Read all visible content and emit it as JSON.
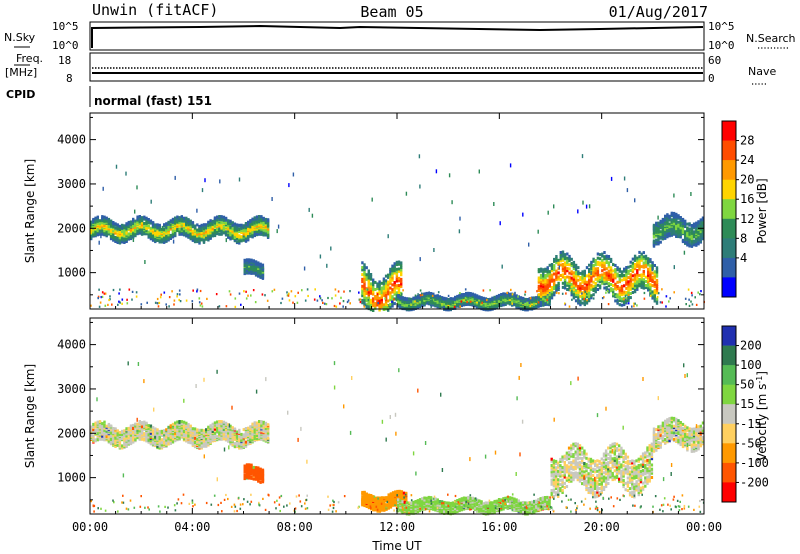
{
  "header": {
    "station": "Unwin (fitACF)",
    "beam": "Beam 05",
    "date": "01/Aug/2017"
  },
  "strips": {
    "nsky_label": "N.Sky",
    "nsky_ticks": [
      "10^5",
      "10^0"
    ],
    "nsearch_label": "N.Search",
    "nsearch_ticks": [
      "10^5",
      "10^0"
    ],
    "freq_label_1": "Freq.",
    "freq_label_2": "[MHz]",
    "freq_ticks": [
      "18",
      "8"
    ],
    "nave_label": "Nave",
    "nave_ticks": [
      "60",
      "0"
    ],
    "cpid_label": "CPID",
    "cpid_text": "normal (fast) 151"
  },
  "axes": {
    "ylabel": "Slant Range [km]",
    "yticks": [
      "4000",
      "3000",
      "2000",
      "1000"
    ],
    "xlabel": "Time UT",
    "xticks": [
      "00:00",
      "04:00",
      "08:00",
      "12:00",
      "16:00",
      "20:00",
      "00:00"
    ]
  },
  "chart_data": [
    {
      "type": "heatmap",
      "title": "",
      "xlabel": "Time UT",
      "ylabel": "Slant Range [km]",
      "xlim": [
        0,
        24
      ],
      "ylim": [
        180,
        4600
      ],
      "colorbar": {
        "label": "Power [dB]",
        "ticks": [
          "28",
          "24",
          "20",
          "16",
          "12",
          "8",
          "4"
        ],
        "colors": [
          "#ff0000",
          "#ff4d00",
          "#ff9900",
          "#ffd400",
          "#7fd640",
          "#2e8b57",
          "#2e7d78",
          "#2f5fa8",
          "#0000ff"
        ]
      },
      "regions": [
        {
          "t0": 0.0,
          "t1": 7.0,
          "r_center": 2000,
          "r_width": 400,
          "peak_db": 20
        },
        {
          "t0": 6.0,
          "t1": 6.8,
          "r_center": 1100,
          "r_width": 300,
          "peak_db": 12
        },
        {
          "t0": 10.6,
          "t1": 12.2,
          "r_center": 600,
          "r_width": 900,
          "peak_db": 28
        },
        {
          "t0": 12.0,
          "t1": 18.0,
          "r_center": 380,
          "r_width": 250,
          "peak_db": 16
        },
        {
          "t0": 17.5,
          "t1": 22.2,
          "r_center": 900,
          "r_width": 800,
          "peak_db": 28
        },
        {
          "t0": 22.0,
          "t1": 24.0,
          "r_center": 2000,
          "r_width": 500,
          "peak_db": 14
        }
      ]
    },
    {
      "type": "heatmap",
      "title": "",
      "xlabel": "Time UT",
      "ylabel": "Slant Range [km]",
      "xlim": [
        0,
        24
      ],
      "ylim": [
        180,
        4600
      ],
      "colorbar": {
        "label": "Velocity [m s^-1]",
        "ticks": [
          "200",
          "100",
          "50",
          "15",
          "-15",
          "-50",
          "-100",
          "-200"
        ],
        "colors": [
          "#2030b0",
          "#2f7a4f",
          "#55bb55",
          "#7fd640",
          "#c8c8c0",
          "#ffd060",
          "#ff9900",
          "#ff5500",
          "#ff0000"
        ]
      },
      "regions": [
        {
          "t0": 0.0,
          "t1": 7.0,
          "r_center": 2000,
          "r_width": 400,
          "velocity": 0
        },
        {
          "t0": 6.0,
          "t1": 6.8,
          "r_center": 1100,
          "r_width": 300,
          "velocity": -100
        },
        {
          "t0": 10.6,
          "t1": 12.4,
          "r_center": 500,
          "r_width": 300,
          "velocity": -50
        },
        {
          "t0": 12.0,
          "t1": 18.0,
          "r_center": 400,
          "r_width": 250,
          "velocity": 15
        },
        {
          "t0": 18.0,
          "t1": 22.0,
          "r_center": 1200,
          "r_width": 800,
          "velocity": 0
        },
        {
          "t0": 22.0,
          "t1": 24.0,
          "r_center": 2000,
          "r_width": 500,
          "velocity": 0
        }
      ]
    }
  ]
}
